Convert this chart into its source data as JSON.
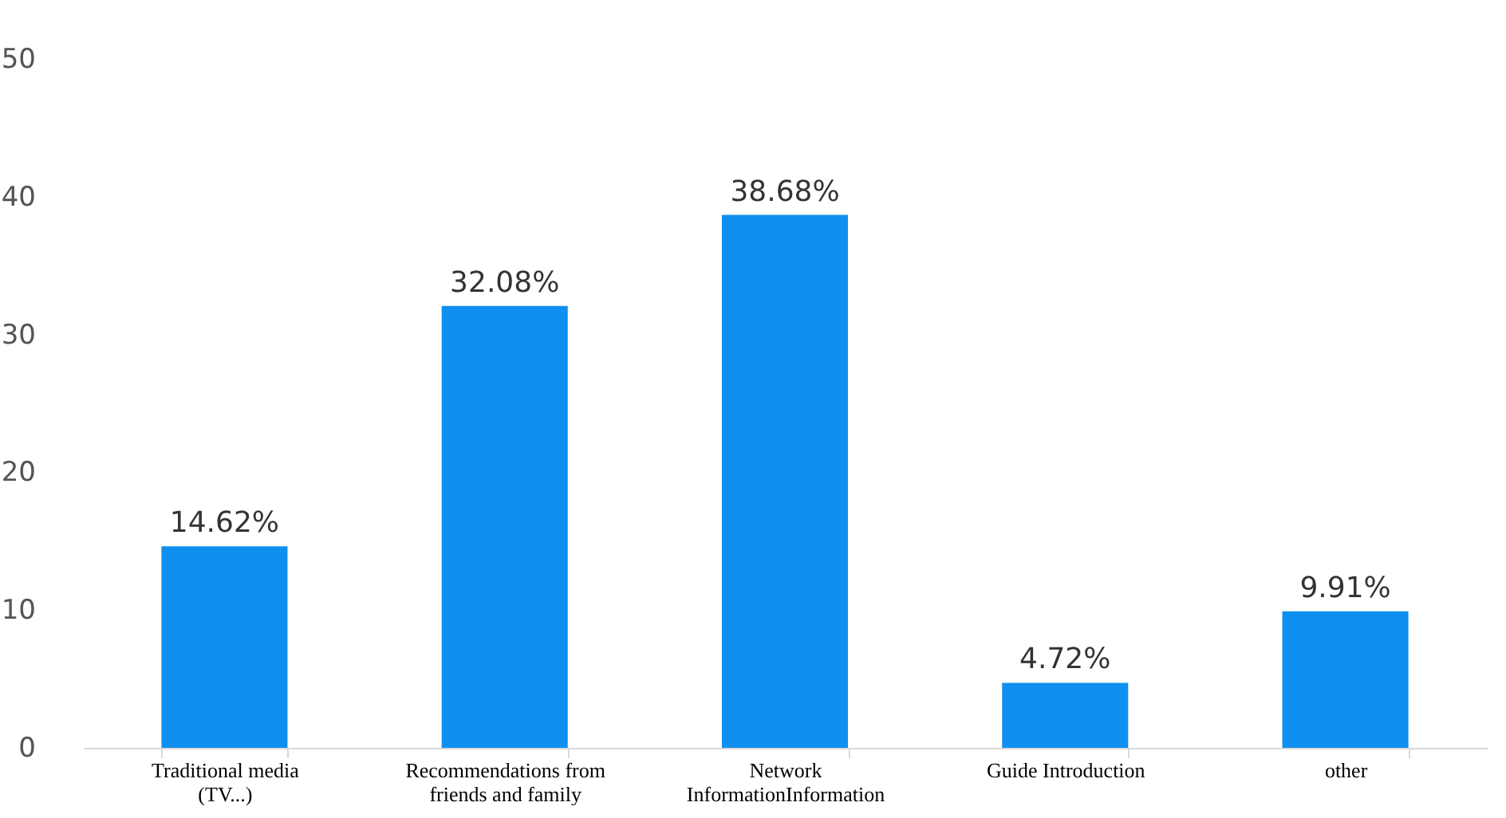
{
  "chart_data": {
    "type": "bar",
    "categories": [
      "Traditional media (TV...)",
      "Recommendations from friends and family",
      "Network InformationInformation",
      "Guide Introduction",
      "other"
    ],
    "values": [
      14.62,
      32.08,
      38.68,
      4.72,
      9.91
    ],
    "value_labels": [
      "14.62%",
      "32.08%",
      "38.68%",
      "4.72%",
      "9.91%"
    ],
    "color": "#0f8ff0",
    "ylim": [
      0,
      50
    ],
    "yticks": [
      0,
      10,
      20,
      30,
      40,
      50
    ],
    "grid": false
  }
}
